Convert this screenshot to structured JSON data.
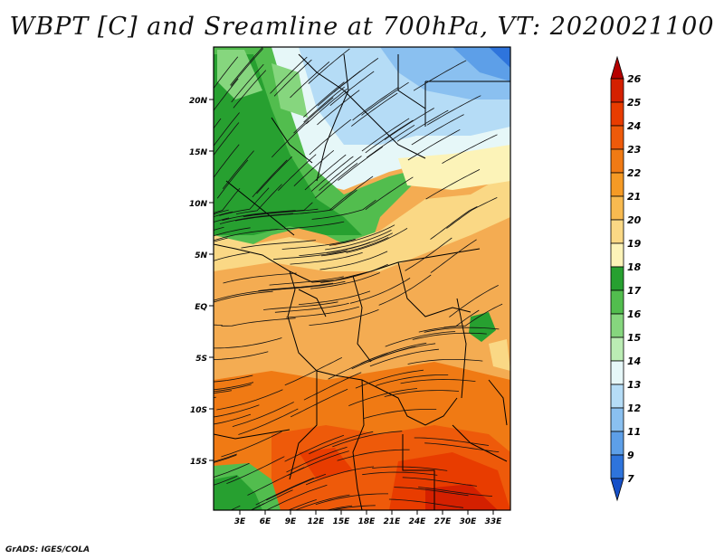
{
  "title": "WBPT [C] and Sreamline at 700hPa, VT: 2020021100",
  "credit": "GrADS: IGES/COLA",
  "map": {
    "lat_labels": [
      "20N",
      "15N",
      "10N",
      "5N",
      "EQ",
      "5S",
      "10S",
      "15S"
    ],
    "lon_labels": [
      "3E",
      "6E",
      "9E",
      "12E",
      "15E",
      "18E",
      "21E",
      "24E",
      "27E",
      "30E",
      "33E"
    ]
  },
  "colorbar": {
    "labels": [
      "26",
      "25",
      "24",
      "23",
      "22",
      "21",
      "20",
      "19",
      "18",
      "17",
      "16",
      "15",
      "14",
      "13",
      "12",
      "11",
      "9",
      "7"
    ],
    "colors": [
      "#b50000",
      "#d42000",
      "#e83c00",
      "#ee5a0a",
      "#f07a14",
      "#f59a25",
      "#f8ba50",
      "#fad885",
      "#fcf3b8",
      "#27a030",
      "#52bd4e",
      "#86d67e",
      "#bbecb4",
      "#e6f7f8",
      "#b5dcf6",
      "#8ac0f0",
      "#5d9fe8",
      "#2e74dc",
      "#1650c8"
    ]
  }
}
